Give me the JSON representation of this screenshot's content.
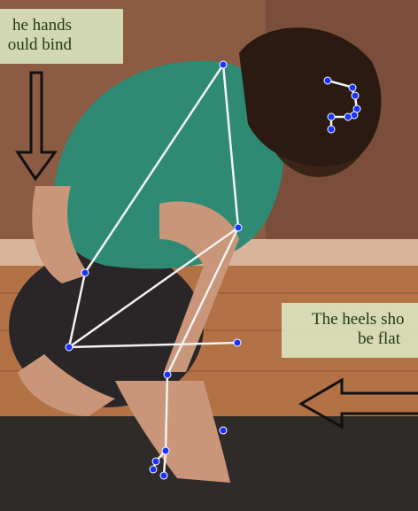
{
  "annotations": {
    "left_caption": {
      "line1": "he hands",
      "line2": "ould bind",
      "arrow": "down-arrow-icon"
    },
    "right_caption": {
      "line1": "The heels sho",
      "line2": "be flat",
      "arrow": "left-arrow-icon"
    }
  },
  "overlay": {
    "skeleton_color": "#f2f2f2",
    "keypoint_color": "#1a33ff",
    "keypoint_outline": "#ffffff"
  },
  "colors": {
    "wall": "#8a5a43",
    "floor": "#b07044",
    "mat": "#2e2b28",
    "shirt": "#2f8a73",
    "pants": "#2a2627",
    "skin": "#c99679",
    "hair": "#3a2418"
  }
}
